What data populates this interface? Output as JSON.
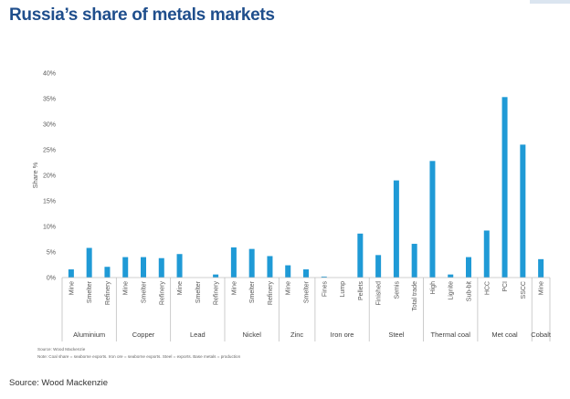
{
  "title": "Russia’s share of metals markets",
  "bottom_source": "Source: Wood Mackenzie",
  "chart_data": {
    "type": "bar",
    "ylabel": "Share %",
    "xlabel": "",
    "ylim": [
      0,
      40
    ],
    "yticks": [
      "0%",
      "5%",
      "10%",
      "15%",
      "20%",
      "25%",
      "30%",
      "35%",
      "40%"
    ],
    "grid": false,
    "color": "#1f9ad6",
    "categories": [
      "Mine",
      "Smelter",
      "Refinery",
      "Mine",
      "Smelter",
      "Refinery",
      "Mine",
      "Smelter",
      "Refinery",
      "Mine",
      "Smelter",
      "Refinery",
      "Mine",
      "Smelter",
      "Fines",
      "Lump",
      "Pellets",
      "Finished",
      "Semis",
      "Total trade",
      "High",
      "Lignite",
      "Sub-bit",
      "HCC",
      "PCI",
      "SSCC",
      "Mine"
    ],
    "values": [
      1.6,
      5.8,
      2.1,
      4.0,
      4.0,
      3.8,
      4.6,
      0,
      0.6,
      5.9,
      5.6,
      4.2,
      2.4,
      1.6,
      0.2,
      0,
      8.6,
      4.4,
      19.0,
      6.6,
      22.8,
      0.6,
      4.0,
      9.2,
      35.3,
      26.0,
      3.6
    ],
    "groups": [
      {
        "name": "Aluminium",
        "count": 3
      },
      {
        "name": "Copper",
        "count": 3
      },
      {
        "name": "Lead",
        "count": 3
      },
      {
        "name": "Nickel",
        "count": 3
      },
      {
        "name": "Zinc",
        "count": 2
      },
      {
        "name": "Iron ore",
        "count": 3
      },
      {
        "name": "Steel",
        "count": 3
      },
      {
        "name": "Thermal coal",
        "count": 3
      },
      {
        "name": "Met coal",
        "count": 3
      },
      {
        "name": "Cobalt",
        "count": 1
      }
    ],
    "source_note": "Source: Wood Mackenzie",
    "footnote": "Note: Coal share = seaborne exports. Iron ore = seaborne exports. Steel = exports. Base metals = production"
  }
}
